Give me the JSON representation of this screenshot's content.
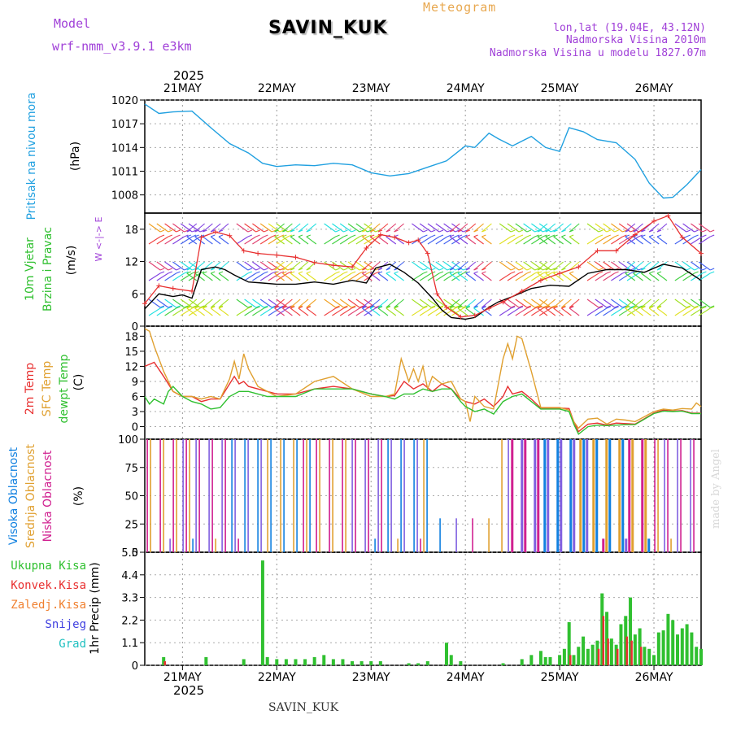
{
  "header": {
    "model_label": "Model",
    "model_version": "wrf-nmm_v3.9.1 e3km",
    "station": "SAVIN_KUK",
    "product": "Meteogram",
    "lonlat": "lon,lat (19.04E, 43.12N)",
    "altitude": "Nadmorska Visina 2010m",
    "model_altitude": "Nadmorska Visina u modelu 1827.07m"
  },
  "footer": {
    "station": "SAVIN_KUK",
    "made_by": "made by Angel"
  },
  "colors": {
    "pressure": "#20a0e0",
    "wind_speed": "#000000",
    "wind_gust": "#e83030",
    "t2m": "#e83030",
    "sfc": "#e0a030",
    "dew": "#30c030",
    "cloud_high": "#1080e0",
    "cloud_mid": "#e0a030",
    "cloud_low": "#d02090",
    "precip_total": "#30c030",
    "precip_conv": "#e83030",
    "precip_frozen": "#f08030",
    "snow": "#4040e0",
    "graupel": "#20c0c0",
    "purple_text": "#a040d8"
  },
  "chart_data": {
    "type": "line",
    "time_axis": {
      "year": "2025",
      "days": [
        "21MAY",
        "22MAY",
        "23MAY",
        "24MAY",
        "25MAY",
        "26MAY"
      ],
      "start_day_index": 0.6,
      "end_day_index": 6.5
    },
    "panels": [
      {
        "id": "pressure",
        "title": "Pritisak na nivou mora",
        "units": "(hPa)",
        "ylim": [
          1005.7,
          1020
        ],
        "yticks": [
          "1008",
          "1011",
          "1014",
          "1017",
          "1020"
        ],
        "series": [
          {
            "name": "MSLP",
            "x": [
              0.6,
              0.75,
              0.9,
              1.1,
              1.3,
              1.5,
              1.7,
              1.85,
              2.0,
              2.2,
              2.4,
              2.6,
              2.8,
              3.0,
              3.2,
              3.4,
              3.6,
              3.8,
              4.0,
              4.1,
              4.25,
              4.35,
              4.5,
              4.6,
              4.7,
              4.85,
              5.0,
              5.1,
              5.25,
              5.4,
              5.6,
              5.8,
              5.95,
              6.1,
              6.2,
              6.35,
              6.5
            ],
            "values": [
              1019.5,
              1018.3,
              1018.5,
              1018.6,
              1016.5,
              1014.5,
              1013.3,
              1012.0,
              1011.6,
              1011.8,
              1011.7,
              1012.0,
              1011.8,
              1010.8,
              1010.4,
              1010.7,
              1011.5,
              1012.3,
              1014.2,
              1014.0,
              1015.8,
              1015.1,
              1014.2,
              1014.8,
              1015.4,
              1014.0,
              1013.5,
              1016.5,
              1016.0,
              1015.0,
              1014.6,
              1012.5,
              1009.5,
              1007.6,
              1007.7,
              1009.3,
              1011.2
            ]
          }
        ]
      },
      {
        "id": "wind",
        "title": "10m Vjetar Brzina i Pravac",
        "units": "(m/s)",
        "compass": "W <-|-> E",
        "ylim": [
          0,
          21
        ],
        "yticks": [
          "0",
          "6",
          "12",
          "18"
        ],
        "series": [
          {
            "name": "speed",
            "x": [
              0.6,
              0.75,
              0.9,
              1.0,
              1.1,
              1.2,
              1.35,
              1.45,
              1.55,
              1.7,
              1.85,
              2.0,
              2.2,
              2.4,
              2.6,
              2.8,
              2.95,
              3.05,
              3.2,
              3.35,
              3.5,
              3.65,
              3.75,
              3.85,
              4.0,
              4.1,
              4.25,
              4.35,
              4.5,
              4.7,
              4.9,
              5.1,
              5.3,
              5.5,
              5.7,
              5.9,
              6.1,
              6.3,
              6.5
            ],
            "values": [
              3.2,
              6.0,
              5.5,
              5.8,
              5.2,
              10.5,
              11.0,
              10.5,
              9.5,
              8.2,
              8.0,
              7.8,
              7.8,
              8.2,
              7.8,
              8.5,
              8.0,
              10.8,
              11.5,
              10.0,
              8.0,
              5.2,
              3.0,
              1.6,
              1.3,
              1.6,
              3.5,
              4.5,
              5.5,
              7.0,
              7.6,
              7.4,
              9.8,
              10.5,
              10.5,
              10.0,
              11.5,
              10.8,
              8.5
            ]
          },
          {
            "name": "gust",
            "x": [
              0.6,
              0.75,
              0.9,
              1.1,
              1.2,
              1.35,
              1.5,
              1.65,
              1.8,
              2.0,
              2.2,
              2.4,
              2.6,
              2.8,
              2.95,
              3.1,
              3.25,
              3.4,
              3.5,
              3.6,
              3.7,
              3.8,
              3.95,
              4.1,
              4.25,
              4.4,
              4.6,
              4.8,
              5.0,
              5.2,
              5.4,
              5.6,
              5.8,
              6.0,
              6.15,
              6.3,
              6.5
            ],
            "values": [
              4.2,
              7.5,
              7.0,
              6.5,
              16.5,
              17.5,
              16.8,
              14.0,
              13.5,
              13.2,
              12.8,
              11.8,
              11.3,
              11.0,
              14.5,
              17.0,
              16.5,
              15.5,
              16.0,
              13.5,
              6.0,
              3.5,
              1.7,
              2.0,
              3.3,
              4.5,
              6.5,
              8.5,
              9.8,
              11.0,
              14.0,
              14.0,
              17.0,
              19.5,
              20.5,
              16.5,
              13.5
            ]
          }
        ]
      },
      {
        "id": "temperature",
        "title_lines": [
          "2m Temp",
          "SFC Temp",
          "dewpt Temp"
        ],
        "units": "(C)",
        "ylim": [
          -2.5,
          20
        ],
        "yticks": [
          "0",
          "3",
          "6",
          "9",
          "12",
          "15",
          "18"
        ],
        "series": [
          {
            "name": "2m Temp",
            "x": [
              0.6,
              0.7,
              0.8,
              0.9,
              1.0,
              1.1,
              1.2,
              1.3,
              1.4,
              1.5,
              1.55,
              1.6,
              1.65,
              1.7,
              1.8,
              1.9,
              2.0,
              2.2,
              2.4,
              2.6,
              2.8,
              3.0,
              3.15,
              3.25,
              3.35,
              3.45,
              3.55,
              3.65,
              3.75,
              3.85,
              3.95,
              4.0,
              4.1,
              4.2,
              4.3,
              4.4,
              4.45,
              4.5,
              4.6,
              4.7,
              4.8,
              4.9,
              5.0,
              5.1,
              5.15,
              5.2,
              5.3,
              5.4,
              5.5,
              5.6,
              5.7,
              5.8,
              5.9,
              6.0,
              6.1,
              6.2,
              6.3,
              6.4,
              6.5
            ],
            "values": [
              12.0,
              12.8,
              10.0,
              7.0,
              6.0,
              6.0,
              5.0,
              5.5,
              5.5,
              8.5,
              10.0,
              8.5,
              9.0,
              8.0,
              7.5,
              7.0,
              6.5,
              6.5,
              7.5,
              8.0,
              7.5,
              6.5,
              6.0,
              6.2,
              9.0,
              7.5,
              8.5,
              7.0,
              8.5,
              7.5,
              5.5,
              5.0,
              4.5,
              5.5,
              4.0,
              6.0,
              8.0,
              6.5,
              7.0,
              5.5,
              3.7,
              3.7,
              3.7,
              3.6,
              1.0,
              -1.0,
              0.5,
              0.7,
              0.3,
              0.7,
              0.6,
              0.5,
              1.6,
              2.7,
              3.3,
              3.1,
              3.2,
              2.7,
              2.7
            ]
          },
          {
            "name": "SFC Temp",
            "x": [
              0.6,
              0.65,
              0.7,
              0.8,
              0.9,
              1.0,
              1.1,
              1.2,
              1.3,
              1.4,
              1.5,
              1.55,
              1.6,
              1.65,
              1.7,
              1.8,
              1.9,
              2.0,
              2.2,
              2.4,
              2.6,
              2.8,
              3.0,
              3.15,
              3.25,
              3.32,
              3.4,
              3.45,
              3.5,
              3.55,
              3.6,
              3.65,
              3.75,
              3.85,
              3.95,
              4.0,
              4.05,
              4.1,
              4.2,
              4.3,
              4.4,
              4.45,
              4.5,
              4.55,
              4.6,
              4.7,
              4.8,
              4.9,
              5.0,
              5.1,
              5.15,
              5.2,
              5.3,
              5.4,
              5.5,
              5.6,
              5.7,
              5.8,
              5.9,
              6.0,
              6.1,
              6.2,
              6.3,
              6.4,
              6.45,
              6.5
            ],
            "values": [
              19.5,
              19.0,
              16.0,
              11.0,
              7.0,
              6.0,
              6.0,
              5.5,
              6.0,
              5.5,
              9.5,
              13.0,
              9.5,
              14.5,
              11.5,
              8.0,
              7.0,
              6.0,
              6.5,
              9.0,
              10.0,
              7.5,
              6.0,
              6.0,
              6.5,
              13.5,
              9.0,
              11.5,
              9.0,
              12.0,
              7.5,
              10.0,
              8.5,
              9.0,
              5.5,
              5.0,
              1.0,
              6.0,
              4.0,
              3.5,
              13.5,
              16.5,
              13.5,
              18.0,
              17.5,
              11.0,
              3.8,
              3.8,
              3.8,
              3.3,
              1.0,
              -0.3,
              1.5,
              1.7,
              0.5,
              1.5,
              1.3,
              1.0,
              2.0,
              3.0,
              3.5,
              3.3,
              3.6,
              3.5,
              4.7,
              4.0
            ]
          },
          {
            "name": "dewpt Temp",
            "x": [
              0.6,
              0.65,
              0.7,
              0.8,
              0.85,
              0.9,
              1.0,
              1.1,
              1.2,
              1.3,
              1.4,
              1.5,
              1.6,
              1.7,
              1.8,
              1.9,
              2.0,
              2.2,
              2.4,
              2.6,
              2.8,
              3.0,
              3.15,
              3.25,
              3.35,
              3.45,
              3.55,
              3.65,
              3.75,
              3.85,
              3.95,
              4.0,
              4.1,
              4.2,
              4.3,
              4.4,
              4.5,
              4.6,
              4.7,
              4.8,
              4.9,
              5.0,
              5.1,
              5.15,
              5.2,
              5.3,
              5.4,
              5.5,
              5.6,
              5.7,
              5.8,
              5.9,
              6.0,
              6.1,
              6.2,
              6.3,
              6.4,
              6.5
            ],
            "values": [
              6.0,
              4.5,
              5.5,
              4.5,
              7.0,
              8.0,
              6.0,
              5.0,
              4.5,
              3.5,
              3.8,
              6.0,
              7.0,
              7.0,
              6.5,
              6.0,
              6.0,
              6.0,
              7.5,
              7.5,
              7.5,
              6.5,
              6.0,
              5.5,
              6.5,
              6.5,
              7.5,
              7.0,
              7.5,
              7.5,
              5.0,
              4.0,
              3.0,
              3.5,
              2.5,
              5.0,
              6.0,
              6.5,
              5.0,
              3.5,
              3.5,
              3.5,
              3.0,
              0.5,
              -1.5,
              0.0,
              0.3,
              0.2,
              0.3,
              0.4,
              0.4,
              1.5,
              2.6,
              3.1,
              3.0,
              3.1,
              2.6,
              2.6
            ]
          }
        ]
      },
      {
        "id": "clouds",
        "title_lines": [
          "Visoka Oblacnost",
          "Srednja Oblacnost",
          "Niska Oblacnost"
        ],
        "units": "(%)",
        "ylim": [
          0,
          100
        ],
        "yticks": [
          "0",
          "25",
          "50",
          "75",
          "100"
        ]
      },
      {
        "id": "precip",
        "units": "1hr Precip (mm)",
        "legend": [
          "Ukupna Kisa",
          "Konvek.Kisa",
          "Zaledj.Kisa",
          "Snijeg",
          "Grad"
        ],
        "ylim": [
          0,
          5.5
        ],
        "yticks": [
          "0",
          "1.1",
          "2.2",
          "3.3",
          "4.4",
          "5.5"
        ],
        "series": [
          {
            "name": "Ukupna Kisa",
            "x": [
              0.8,
              1.25,
              1.65,
              1.85,
              1.9,
              2.0,
              2.1,
              2.2,
              2.3,
              2.4,
              2.5,
              2.6,
              2.7,
              2.8,
              2.9,
              3.0,
              3.1,
              3.4,
              3.5,
              3.6,
              3.8,
              3.85,
              3.95,
              4.4,
              4.6,
              4.7,
              4.8,
              4.85,
              4.9,
              5.0,
              5.05,
              5.1,
              5.15,
              5.2,
              5.25,
              5.3,
              5.35,
              5.4,
              5.45,
              5.5,
              5.55,
              5.6,
              5.65,
              5.7,
              5.75,
              5.8,
              5.85,
              5.9,
              5.95,
              6.0,
              6.05,
              6.1,
              6.15,
              6.2,
              6.25,
              6.3,
              6.35,
              6.4,
              6.45,
              6.5
            ],
            "values": [
              0.4,
              0.4,
              0.3,
              5.1,
              0.4,
              0.3,
              0.3,
              0.3,
              0.3,
              0.4,
              0.5,
              0.3,
              0.3,
              0.2,
              0.2,
              0.2,
              0.2,
              0.1,
              0.1,
              0.2,
              1.1,
              0.5,
              0.2,
              0.1,
              0.3,
              0.5,
              0.7,
              0.4,
              0.4,
              0.5,
              0.8,
              2.1,
              0.5,
              0.9,
              1.4,
              0.8,
              1.0,
              1.2,
              3.5,
              2.6,
              1.3,
              1.0,
              2.0,
              2.4,
              3.3,
              1.5,
              1.8,
              0.9,
              0.8,
              0.5,
              1.6,
              1.7,
              2.5,
              2.2,
              1.5,
              1.8,
              2.0,
              1.6,
              0.9,
              0.8
            ]
          },
          {
            "name": "Konvek.Kisa",
            "x": [
              0.82,
              5.12,
              5.42,
              5.47,
              5.52,
              5.62,
              5.72,
              5.77,
              5.87
            ],
            "values": [
              0.2,
              0.5,
              0.8,
              2.4,
              1.3,
              0.8,
              1.4,
              1.2,
              0.9
            ]
          }
        ]
      }
    ]
  }
}
